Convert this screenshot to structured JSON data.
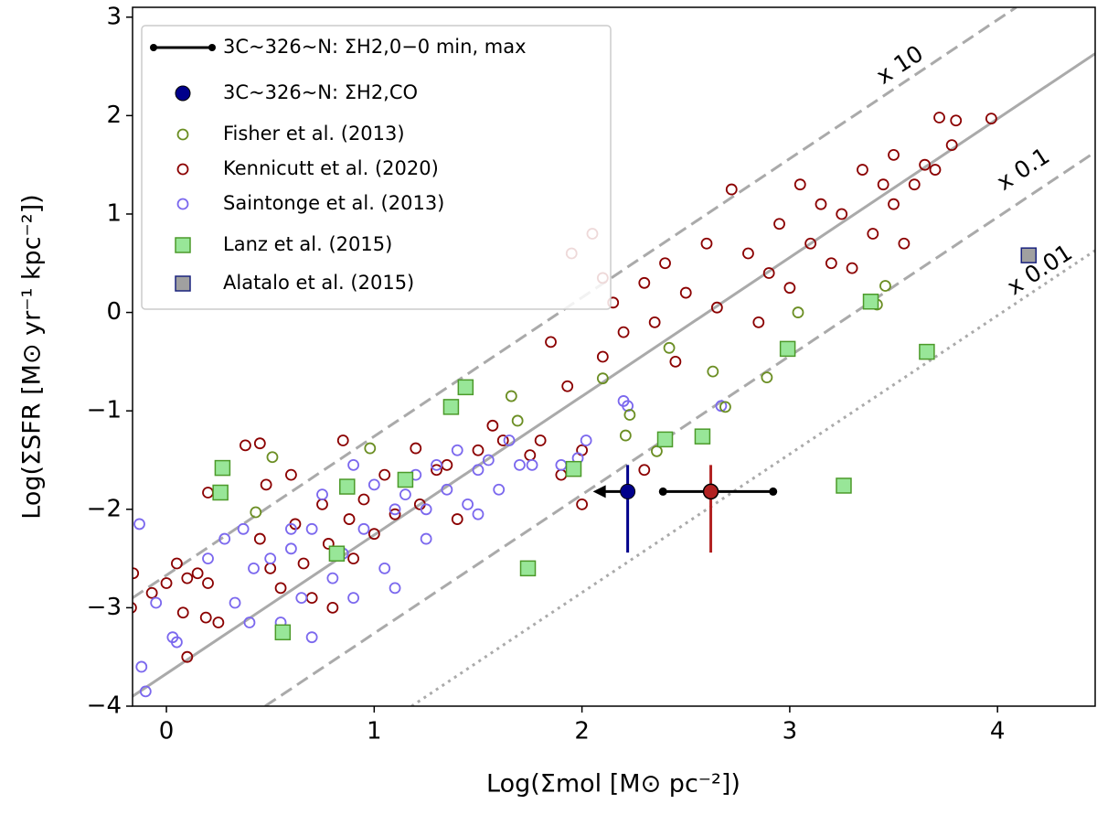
{
  "chart_data": {
    "type": "scatter",
    "xlabel": "Log(Σmol [M⊙ pc⁻²])",
    "ylabel": "Log(ΣSFR [M⊙ yr⁻¹ kpc⁻²])",
    "xlim": [
      -0.163,
      4.47
    ],
    "ylim": [
      -4,
      3.1
    ],
    "xticks": [
      0,
      1,
      2,
      3,
      4
    ],
    "yticks": [
      {
        "value": -4,
        "label": "−4"
      },
      {
        "value": -3,
        "label": "−3"
      },
      {
        "value": -2,
        "label": "−2"
      },
      {
        "value": -1,
        "label": "−1"
      },
      0,
      1,
      2,
      3
    ],
    "lines": [
      {
        "style": "solid",
        "color": "#aaaaaa",
        "x": [
          -0.163,
          4.47
        ],
        "values": [
          -3.9,
          2.63
        ]
      },
      {
        "style": "dashed",
        "color": "#aaaaaa",
        "x": [
          -0.163,
          4.09
        ],
        "values": [
          -2.9,
          3.1
        ]
      },
      {
        "style": "dashed",
        "color": "#aaaaaa",
        "x": [
          0.475,
          4.47
        ],
        "values": [
          -4,
          1.63
        ]
      },
      {
        "style": "dotted",
        "color": "#aaaaaa",
        "x": [
          1.18,
          4.47
        ],
        "values": [
          -4,
          0.63
        ]
      }
    ],
    "annotations": [
      "x 10",
      "x 0.1",
      "x 0.01"
    ],
    "series": [
      {
        "name": "3C~326~N: ΣH2,0−0 min, max",
        "color": "#000000",
        "marker": "errorline",
        "center_color": "#b22222",
        "x": [
          2.39,
          2.62,
          2.92
        ],
        "values": [
          -1.82,
          -1.82,
          -1.82
        ],
        "yerr_low": [
          null,
          0.62,
          null
        ],
        "yerr_high": [
          null,
          0.27,
          null
        ]
      },
      {
        "name": "3C~326~N: ΣH2,CO",
        "color": "#00008b",
        "marker": "big",
        "upper_limit": true,
        "x": [
          2.22
        ],
        "values": [
          -1.82
        ],
        "yerr_low": [
          0.62
        ],
        "yerr_high": [
          0.27
        ]
      },
      {
        "name": "Fisher et al. (2013)",
        "color": "#6b8e23",
        "marker": "open",
        "x": [
          0.51,
          0.43,
          0.98,
          1.66,
          1.69,
          2.1,
          2.23,
          2.21,
          2.36,
          2.42,
          2.63,
          2.69,
          2.89,
          3.04,
          3.42,
          3.46
        ],
        "values": [
          -1.47,
          -2.03,
          -1.38,
          -0.85,
          -1.1,
          -0.67,
          -1.04,
          -1.25,
          -1.41,
          -0.36,
          -0.6,
          -0.96,
          -0.66,
          0.0,
          0.08,
          0.27
        ]
      },
      {
        "name": "Kennicutt et al. (2020)",
        "color": "#8b0000",
        "marker": "open",
        "x": [
          -0.16,
          -0.17,
          -0.07,
          0.0,
          0.05,
          0.1,
          0.15,
          0.2,
          0.08,
          0.19,
          0.1,
          0.25,
          0.2,
          0.38,
          0.45,
          0.48,
          0.45,
          0.5,
          0.55,
          0.6,
          0.62,
          0.66,
          0.7,
          0.75,
          0.78,
          0.8,
          0.85,
          0.88,
          0.9,
          0.95,
          1.0,
          1.05,
          1.1,
          1.2,
          1.22,
          1.3,
          1.35,
          1.4,
          1.5,
          1.57,
          1.62,
          1.75,
          1.8,
          1.9,
          2.0,
          1.95,
          2.05,
          2.1,
          2.15,
          2.2,
          2.3,
          2.35,
          2.4,
          2.45,
          2.5,
          2.6,
          2.65,
          2.72,
          2.8,
          2.85,
          2.9,
          2.95,
          3.0,
          3.05,
          3.1,
          3.15,
          3.2,
          3.25,
          3.3,
          3.35,
          3.4,
          3.45,
          3.5,
          3.55,
          3.6,
          3.7,
          3.72,
          3.78,
          3.8,
          3.97,
          3.65,
          3.5,
          2.0,
          2.3,
          1.85,
          1.93,
          2.1
        ],
        "values": [
          -2.65,
          -3.0,
          -2.85,
          -2.75,
          -2.55,
          -2.7,
          -2.65,
          -2.75,
          -3.05,
          -3.1,
          -3.5,
          -3.15,
          -1.83,
          -1.35,
          -1.33,
          -1.75,
          -2.3,
          -2.6,
          -2.8,
          -1.65,
          -2.15,
          -2.55,
          -2.9,
          -1.95,
          -2.35,
          -3.0,
          -1.3,
          -2.1,
          -2.5,
          -1.9,
          -2.25,
          -1.65,
          -2.05,
          -1.38,
          -1.95,
          -1.6,
          -1.55,
          -2.1,
          -1.4,
          -1.15,
          -1.3,
          -1.45,
          -1.3,
          -1.65,
          -1.95,
          0.6,
          0.8,
          0.35,
          0.1,
          -0.2,
          0.3,
          -0.1,
          0.5,
          -0.5,
          0.2,
          0.7,
          0.05,
          1.25,
          0.6,
          -0.1,
          0.4,
          0.9,
          0.25,
          1.3,
          0.7,
          1.1,
          0.5,
          1.0,
          0.45,
          1.45,
          0.8,
          1.3,
          1.1,
          0.7,
          1.3,
          1.45,
          1.98,
          1.7,
          1.95,
          1.97,
          1.5,
          1.6,
          -1.4,
          -1.6,
          -0.3,
          -0.75,
          -0.45
        ]
      },
      {
        "name": "Saintonge et al. (2013)",
        "color": "#7b68ee",
        "marker": "open",
        "x": [
          -0.13,
          -0.12,
          -0.1,
          -0.05,
          0.03,
          0.05,
          0.2,
          0.28,
          0.33,
          0.37,
          0.42,
          0.5,
          0.55,
          0.6,
          0.65,
          0.7,
          0.75,
          0.8,
          0.85,
          0.9,
          0.95,
          1.0,
          1.05,
          1.1,
          1.15,
          1.2,
          1.25,
          1.3,
          1.35,
          1.4,
          1.45,
          1.5,
          1.55,
          1.6,
          1.65,
          1.7,
          1.76,
          1.9,
          1.98,
          2.02,
          2.2,
          2.22,
          2.67,
          1.1,
          0.4,
          0.7,
          1.25,
          1.5,
          0.9,
          0.6
        ],
        "values": [
          -2.15,
          -3.6,
          -3.85,
          -2.95,
          -3.3,
          -3.35,
          -2.5,
          -2.3,
          -2.95,
          -2.2,
          -2.6,
          -2.5,
          -3.15,
          -2.4,
          -2.9,
          -2.2,
          -1.85,
          -2.7,
          -2.45,
          -1.55,
          -2.2,
          -1.75,
          -2.6,
          -2.0,
          -1.85,
          -1.65,
          -2.0,
          -1.55,
          -1.8,
          -1.4,
          -1.95,
          -1.6,
          -1.5,
          -1.8,
          -1.3,
          -1.55,
          -1.55,
          -1.55,
          -1.48,
          -1.3,
          -0.9,
          -0.95,
          -0.95,
          -2.8,
          -3.15,
          -3.3,
          -2.3,
          -2.05,
          -2.9,
          -2.2
        ]
      },
      {
        "name": "Lanz et al. (2015)",
        "color": "#98e698",
        "edge": "#4c9a2a",
        "marker": "square",
        "x": [
          0.27,
          0.26,
          0.56,
          0.82,
          0.87,
          1.15,
          1.37,
          1.44,
          1.74,
          1.96,
          2.4,
          2.58,
          2.99,
          3.26,
          3.39,
          3.66
        ],
        "values": [
          -1.58,
          -1.83,
          -3.25,
          -2.45,
          -1.77,
          -1.7,
          -0.96,
          -0.76,
          -2.6,
          -1.59,
          -1.29,
          -1.26,
          -0.37,
          -1.76,
          0.11,
          -0.4
        ]
      },
      {
        "name": "Alatalo et al. (2015)",
        "color": "#a0a0a0",
        "edge": "#1a237e",
        "marker": "square",
        "x": [
          4.15
        ],
        "values": [
          0.58
        ]
      }
    ]
  }
}
